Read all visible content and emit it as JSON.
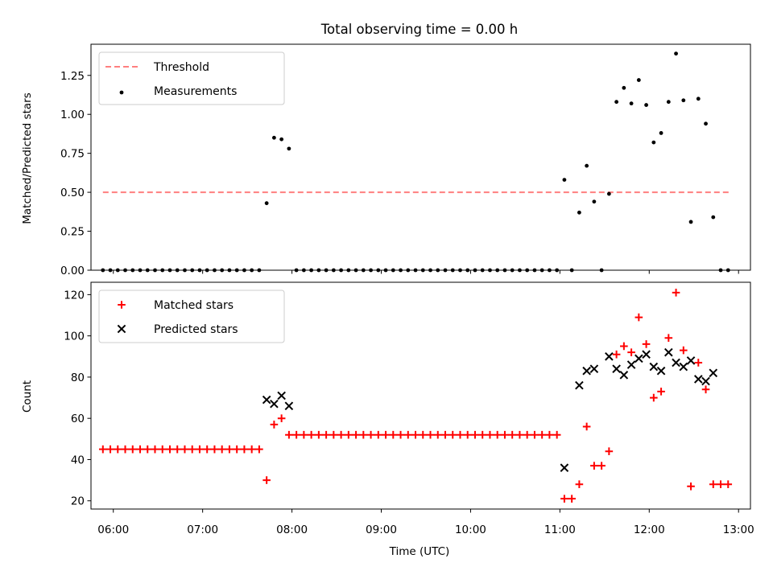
{
  "chart_data": [
    {
      "type": "scatter",
      "title": "Total observing time = 0.00 h",
      "xlabel": "",
      "ylabel": "Matched/Predicted stars",
      "xlim": [
        "05:45",
        "13:08"
      ],
      "ylim": [
        0,
        1.45
      ],
      "yticks": [
        "0.00",
        "0.25",
        "0.50",
        "0.75",
        "1.00",
        "1.25"
      ],
      "legend_position": "upper-left",
      "grid": false,
      "series": [
        {
          "name": "Threshold",
          "kind": "dashed-line",
          "color": "#ff7f7f",
          "x": [
            "05:53",
            "12:55"
          ],
          "y": [
            0.5,
            0.5
          ]
        },
        {
          "name": "Measurements",
          "kind": "scatter",
          "color": "#000000",
          "x": [
            "05:53",
            "05:58",
            "06:03",
            "06:08",
            "06:13",
            "06:18",
            "06:23",
            "06:28",
            "06:33",
            "06:38",
            "06:43",
            "06:48",
            "06:53",
            "06:58",
            "07:03",
            "07:08",
            "07:13",
            "07:18",
            "07:23",
            "07:28",
            "07:33",
            "07:38",
            "07:43",
            "07:48",
            "07:53",
            "07:58",
            "08:03",
            "08:08",
            "08:13",
            "08:18",
            "08:23",
            "08:28",
            "08:33",
            "08:38",
            "08:43",
            "08:48",
            "08:53",
            "08:58",
            "09:03",
            "09:08",
            "09:13",
            "09:18",
            "09:23",
            "09:28",
            "09:33",
            "09:38",
            "09:43",
            "09:48",
            "09:53",
            "09:58",
            "10:03",
            "10:08",
            "10:13",
            "10:18",
            "10:23",
            "10:28",
            "10:33",
            "10:38",
            "10:43",
            "10:48",
            "10:53",
            "10:58",
            "11:03",
            "11:08",
            "11:13",
            "11:18",
            "11:23",
            "11:28",
            "11:33",
            "11:38",
            "11:43",
            "11:48",
            "11:53",
            "11:58",
            "12:03",
            "12:08",
            "12:13",
            "12:18",
            "12:23",
            "12:28",
            "12:33",
            "12:38",
            "12:43",
            "12:48",
            "12:53"
          ],
          "y": [
            0,
            0,
            0,
            0,
            0,
            0,
            0,
            0,
            0,
            0,
            0,
            0,
            0,
            0,
            0,
            0,
            0,
            0,
            0,
            0,
            0,
            0,
            0.43,
            0.85,
            0.84,
            0.78,
            0,
            0,
            0,
            0,
            0,
            0,
            0,
            0,
            0,
            0,
            0,
            0,
            0,
            0,
            0,
            0,
            0,
            0,
            0,
            0,
            0,
            0,
            0,
            0,
            0,
            0,
            0,
            0,
            0,
            0,
            0,
            0,
            0,
            0,
            0,
            0,
            0.58,
            0,
            0.37,
            0.67,
            0.44,
            0,
            0.49,
            1.08,
            1.17,
            1.07,
            1.22,
            1.06,
            0.82,
            0.88,
            1.08,
            1.39,
            1.09,
            0.31,
            1.1,
            0.94,
            0.34,
            0,
            0
          ]
        }
      ]
    },
    {
      "type": "scatter",
      "title": "",
      "xlabel": "Time (UTC)",
      "ylabel": "Count",
      "xlim": [
        "05:45",
        "13:08"
      ],
      "ylim": [
        16,
        126
      ],
      "xticks": [
        "06:00",
        "07:00",
        "08:00",
        "09:00",
        "10:00",
        "11:00",
        "12:00",
        "13:00"
      ],
      "yticks": [
        "20",
        "40",
        "60",
        "80",
        "100",
        "120"
      ],
      "legend_position": "upper-left",
      "grid": false,
      "series": [
        {
          "name": "Matched stars",
          "kind": "plus",
          "color": "#ff0000",
          "x": [
            "05:53",
            "05:58",
            "06:03",
            "06:08",
            "06:13",
            "06:18",
            "06:23",
            "06:28",
            "06:33",
            "06:38",
            "06:43",
            "06:48",
            "06:53",
            "06:58",
            "07:03",
            "07:08",
            "07:13",
            "07:18",
            "07:23",
            "07:28",
            "07:33",
            "07:38",
            "07:43",
            "07:48",
            "07:53",
            "07:58",
            "08:03",
            "08:08",
            "08:13",
            "08:18",
            "08:23",
            "08:28",
            "08:33",
            "08:38",
            "08:43",
            "08:48",
            "08:53",
            "08:58",
            "09:03",
            "09:08",
            "09:13",
            "09:18",
            "09:23",
            "09:28",
            "09:33",
            "09:38",
            "09:43",
            "09:48",
            "09:53",
            "09:58",
            "10:03",
            "10:08",
            "10:13",
            "10:18",
            "10:23",
            "10:28",
            "10:33",
            "10:38",
            "10:43",
            "10:48",
            "10:53",
            "10:58",
            "11:03",
            "11:08",
            "11:13",
            "11:18",
            "11:23",
            "11:28",
            "11:33",
            "11:38",
            "11:43",
            "11:48",
            "11:53",
            "11:58",
            "12:03",
            "12:08",
            "12:13",
            "12:18",
            "12:23",
            "12:28",
            "12:33",
            "12:38",
            "12:43",
            "12:48",
            "12:53"
          ],
          "y": [
            45,
            45,
            45,
            45,
            45,
            45,
            45,
            45,
            45,
            45,
            45,
            45,
            45,
            45,
            45,
            45,
            45,
            45,
            45,
            45,
            45,
            45,
            30,
            57,
            60,
            52,
            52,
            52,
            52,
            52,
            52,
            52,
            52,
            52,
            52,
            52,
            52,
            52,
            52,
            52,
            52,
            52,
            52,
            52,
            52,
            52,
            52,
            52,
            52,
            52,
            52,
            52,
            52,
            52,
            52,
            52,
            52,
            52,
            52,
            52,
            52,
            52,
            21,
            21,
            28,
            56,
            37,
            37,
            44,
            91,
            95,
            92,
            109,
            96,
            70,
            73,
            99,
            121,
            93,
            27,
            87,
            74,
            28,
            28,
            28
          ]
        },
        {
          "name": "Predicted stars",
          "kind": "x",
          "color": "#000000",
          "x": [
            "07:43",
            "07:48",
            "07:53",
            "07:58",
            "11:03",
            "11:13",
            "11:18",
            "11:23",
            "11:33",
            "11:38",
            "11:43",
            "11:48",
            "11:53",
            "11:58",
            "12:03",
            "12:08",
            "12:13",
            "12:18",
            "12:23",
            "12:28",
            "12:33",
            "12:38",
            "12:43"
          ],
          "y": [
            69,
            67,
            71,
            66,
            36,
            76,
            83,
            84,
            90,
            84,
            81,
            86,
            89,
            91,
            85,
            83,
            92,
            87,
            85,
            88,
            79,
            78,
            82
          ]
        }
      ]
    }
  ]
}
